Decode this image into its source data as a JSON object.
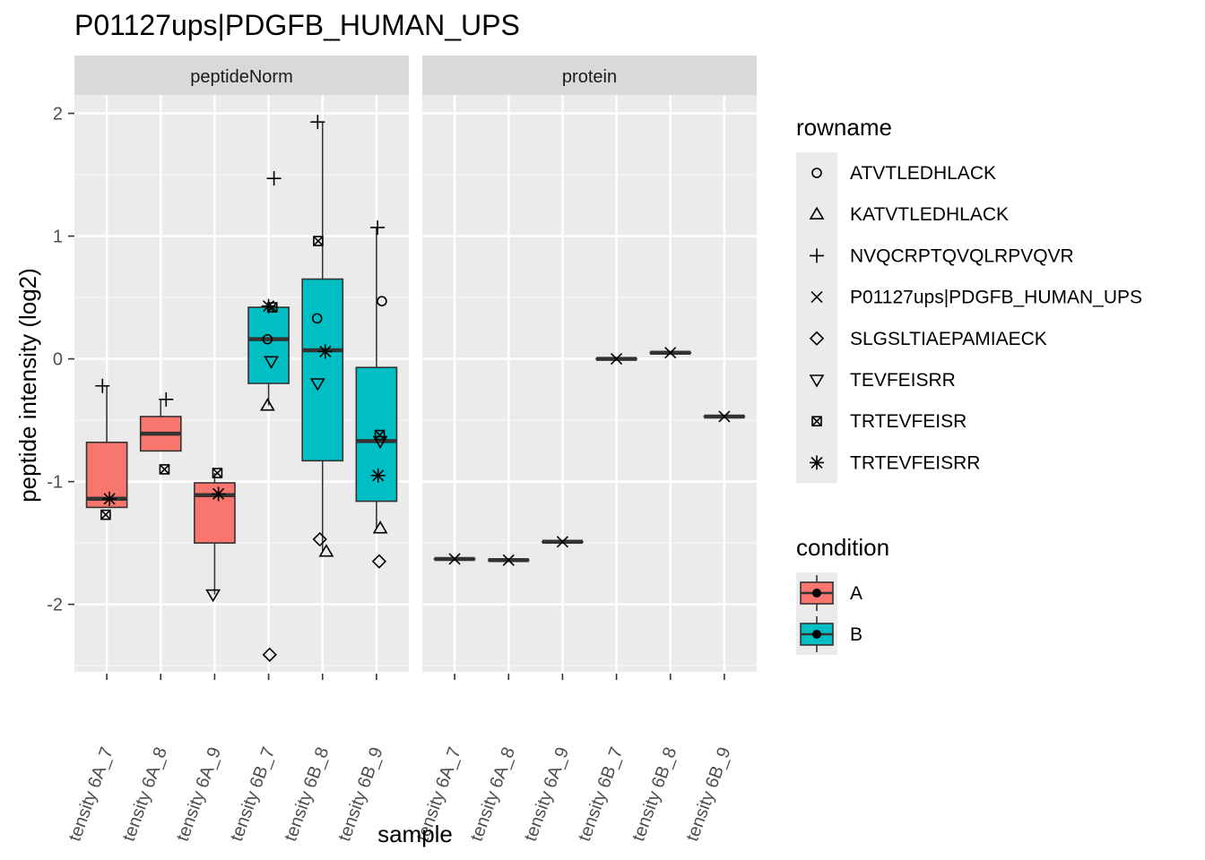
{
  "chart_data": {
    "type": "boxplot",
    "title": "P01127ups|PDGFB_HUMAN_UPS",
    "xlabel": "sample",
    "ylabel": "peptide intensity (log2)",
    "ylim": [
      -2.55,
      2.15
    ],
    "y_ticks": [
      "-2",
      "-1",
      "0",
      "1",
      "2"
    ],
    "y_tick_values": [
      -2,
      -1,
      0,
      1,
      2
    ],
    "facets": [
      "peptideNorm",
      "protein"
    ],
    "categories": [
      "tensity 6A_7",
      "tensity 6A_8",
      "tensity 6A_9",
      "tensity 6B_7",
      "tensity 6B_8",
      "tensity 6B_9"
    ],
    "conditions": [
      "A",
      "A",
      "A",
      "B",
      "B",
      "B"
    ],
    "condition_colors": {
      "A": "#F8766D",
      "B": "#00BFC4"
    },
    "legend_placement": "right",
    "grid": true,
    "rowname_legend": {
      "title": "rowname",
      "items": [
        {
          "label": "ATVTLEDHLACK",
          "shape": "circle"
        },
        {
          "label": "KATVTLEDHLACK",
          "shape": "triangle"
        },
        {
          "label": "NVQCRPTQVQLRPVQVR",
          "shape": "plus"
        },
        {
          "label": "P01127ups|PDGFB_HUMAN_UPS",
          "shape": "cross"
        },
        {
          "label": "SLGSLTIAEPAMIAECK",
          "shape": "diamond"
        },
        {
          "label": "TEVFEISRR",
          "shape": "triangle-down"
        },
        {
          "label": "TRTEVFEISR",
          "shape": "square-cross"
        },
        {
          "label": "TRTEVFEISRR",
          "shape": "asterisk"
        }
      ]
    },
    "condition_legend": {
      "title": "condition",
      "items": [
        {
          "label": "A",
          "color": "#F8766D"
        },
        {
          "label": "B",
          "color": "#00BFC4"
        }
      ]
    },
    "panels": [
      {
        "facet": "peptideNorm",
        "boxes": [
          {
            "q1": -1.21,
            "median": -1.14,
            "q3": -0.68,
            "lower": -1.21,
            "upper": -0.22
          },
          {
            "q1": -0.75,
            "median": -0.61,
            "q3": -0.47,
            "lower": -0.75,
            "upper": -0.33
          },
          {
            "q1": -1.5,
            "median": -1.11,
            "q3": -1.01,
            "lower": -1.92,
            "upper": -0.93
          },
          {
            "q1": -0.2,
            "median": 0.16,
            "q3": 0.42,
            "lower": -0.38,
            "upper": 0.42
          },
          {
            "q1": -0.83,
            "median": 0.07,
            "q3": 0.65,
            "lower": -1.57,
            "upper": 1.93
          },
          {
            "q1": -1.16,
            "median": -0.67,
            "q3": -0.07,
            "lower": -1.38,
            "upper": 1.07
          }
        ],
        "points": [
          {
            "sample": 0,
            "shape": "plus",
            "y": -0.22,
            "dx": -0.08
          },
          {
            "sample": 0,
            "shape": "asterisk",
            "y": -1.14,
            "dx": 0.05
          },
          {
            "sample": 0,
            "shape": "square-cross",
            "y": -1.27,
            "dx": -0.02
          },
          {
            "sample": 1,
            "shape": "plus",
            "y": -0.33,
            "dx": 0.1
          },
          {
            "sample": 1,
            "shape": "square-cross",
            "y": -0.9,
            "dx": 0.07
          },
          {
            "sample": 2,
            "shape": "square-cross",
            "y": -0.93,
            "dx": 0.05
          },
          {
            "sample": 2,
            "shape": "asterisk",
            "y": -1.1,
            "dx": 0.07
          },
          {
            "sample": 2,
            "shape": "triangle-down",
            "y": -1.92,
            "dx": -0.03
          },
          {
            "sample": 3,
            "shape": "plus",
            "y": 1.47,
            "dx": 0.1
          },
          {
            "sample": 3,
            "shape": "asterisk",
            "y": 0.43,
            "dx": 0.0
          },
          {
            "sample": 3,
            "shape": "square-cross",
            "y": 0.42,
            "dx": 0.07
          },
          {
            "sample": 3,
            "shape": "circle",
            "y": 0.16,
            "dx": -0.02
          },
          {
            "sample": 3,
            "shape": "triangle-down",
            "y": -0.02,
            "dx": 0.05
          },
          {
            "sample": 3,
            "shape": "triangle",
            "y": -0.38,
            "dx": -0.02
          },
          {
            "sample": 3,
            "shape": "diamond",
            "y": -2.41,
            "dx": 0.02
          },
          {
            "sample": 4,
            "shape": "plus",
            "y": 1.93,
            "dx": -0.09
          },
          {
            "sample": 4,
            "shape": "square-cross",
            "y": 0.96,
            "dx": -0.08
          },
          {
            "sample": 4,
            "shape": "circle",
            "y": 0.33,
            "dx": -0.1
          },
          {
            "sample": 4,
            "shape": "asterisk",
            "y": 0.06,
            "dx": 0.05
          },
          {
            "sample": 4,
            "shape": "triangle-down",
            "y": -0.2,
            "dx": -0.09
          },
          {
            "sample": 4,
            "shape": "diamond",
            "y": -1.47,
            "dx": -0.05
          },
          {
            "sample": 4,
            "shape": "triangle",
            "y": -1.57,
            "dx": 0.07
          },
          {
            "sample": 5,
            "shape": "plus",
            "y": 1.07,
            "dx": 0.02
          },
          {
            "sample": 5,
            "shape": "circle",
            "y": 0.47,
            "dx": 0.1
          },
          {
            "sample": 5,
            "shape": "square-cross",
            "y": -0.62,
            "dx": 0.06
          },
          {
            "sample": 5,
            "shape": "triangle-down",
            "y": -0.67,
            "dx": 0.07
          },
          {
            "sample": 5,
            "shape": "asterisk",
            "y": -0.95,
            "dx": 0.03
          },
          {
            "sample": 5,
            "shape": "triangle",
            "y": -1.38,
            "dx": 0.07
          },
          {
            "sample": 5,
            "shape": "diamond",
            "y": -1.65,
            "dx": 0.05
          }
        ]
      },
      {
        "facet": "protein",
        "boxes": [
          {
            "q1": -1.63,
            "median": -1.63,
            "q3": -1.63,
            "lower": -1.63,
            "upper": -1.63
          },
          {
            "q1": -1.64,
            "median": -1.64,
            "q3": -1.64,
            "lower": -1.64,
            "upper": -1.64
          },
          {
            "q1": -1.49,
            "median": -1.49,
            "q3": -1.49,
            "lower": -1.49,
            "upper": -1.49
          },
          {
            "q1": 0.0,
            "median": 0.0,
            "q3": 0.0,
            "lower": 0.0,
            "upper": 0.0
          },
          {
            "q1": 0.05,
            "median": 0.05,
            "q3": 0.05,
            "lower": 0.05,
            "upper": 0.05
          },
          {
            "q1": -0.47,
            "median": -0.47,
            "q3": -0.47,
            "lower": -0.47,
            "upper": -0.47
          }
        ],
        "points": [
          {
            "sample": 0,
            "shape": "cross",
            "y": -1.63,
            "dx": 0.0
          },
          {
            "sample": 1,
            "shape": "cross",
            "y": -1.64,
            "dx": 0.0
          },
          {
            "sample": 2,
            "shape": "cross",
            "y": -1.49,
            "dx": 0.0
          },
          {
            "sample": 3,
            "shape": "cross",
            "y": 0.0,
            "dx": 0.0
          },
          {
            "sample": 4,
            "shape": "cross",
            "y": 0.05,
            "dx": 0.0
          },
          {
            "sample": 5,
            "shape": "cross",
            "y": -0.47,
            "dx": 0.0
          }
        ]
      }
    ]
  }
}
